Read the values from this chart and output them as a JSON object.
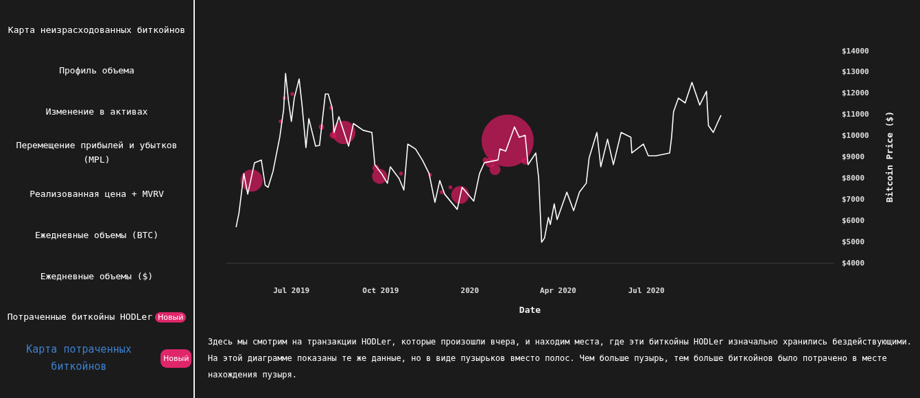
{
  "chart_data": {
    "type": "line",
    "xlabel": "Date",
    "ylabel": "Bitcoin Price ($)",
    "xticks": [
      {
        "value": "2019-07-01",
        "label": "Jul 2019"
      },
      {
        "value": "2019-10-01",
        "label": "Oct 2019"
      },
      {
        "value": "2020-01-01",
        "label": "2020"
      },
      {
        "value": "2020-04-01",
        "label": "Apr 2020"
      },
      {
        "value": "2020-07-01",
        "label": "Jul 2020"
      }
    ],
    "xlim": [
      "2019-04-25",
      "2021-01-10"
    ],
    "ylim": [
      4000,
      14000
    ],
    "yticks": [
      {
        "value": 4000,
        "label": "$4000"
      },
      {
        "value": 5000,
        "label": "$5000"
      },
      {
        "value": 6000,
        "label": "$6000"
      },
      {
        "value": 7000,
        "label": "$7000"
      },
      {
        "value": 8000,
        "label": "$8000"
      },
      {
        "value": 9000,
        "label": "$9000"
      },
      {
        "value": 10000,
        "label": "$10000"
      },
      {
        "value": 11000,
        "label": "$11000"
      },
      {
        "value": 12000,
        "label": "$12000"
      },
      {
        "value": 13000,
        "label": "$13000"
      },
      {
        "value": 14000,
        "label": "$14000"
      }
    ],
    "grid": false,
    "line_style": "solid",
    "series": [
      {
        "color": "#ffffff",
        "x": [
          "2019-05-05",
          "2019-05-08",
          "2019-05-13",
          "2019-05-17",
          "2019-05-24",
          "2019-05-31",
          "2019-06-04",
          "2019-06-07",
          "2019-06-12",
          "2019-06-19",
          "2019-06-23",
          "2019-06-25",
          "2019-06-28",
          "2019-07-01",
          "2019-07-04",
          "2019-07-09",
          "2019-07-12",
          "2019-07-16",
          "2019-07-19",
          "2019-07-26",
          "2019-07-30",
          "2019-08-05",
          "2019-08-08",
          "2019-08-12",
          "2019-08-14",
          "2019-08-19",
          "2019-08-29",
          "2019-09-03",
          "2019-09-13",
          "2019-09-22",
          "2019-09-25",
          "2019-10-02",
          "2019-10-08",
          "2019-10-11",
          "2019-10-20",
          "2019-10-25",
          "2019-10-29",
          "2019-11-06",
          "2019-11-13",
          "2019-11-20",
          "2019-11-26",
          "2019-12-01",
          "2019-12-06",
          "2019-12-19",
          "2019-12-24",
          "2020-01-05",
          "2020-01-11",
          "2020-01-16",
          "2020-01-30",
          "2020-02-01",
          "2020-02-07",
          "2020-02-16",
          "2020-02-21",
          "2020-02-27",
          "2020-03-01",
          "2020-03-09",
          "2020-03-12",
          "2020-03-15",
          "2020-03-18",
          "2020-03-22",
          "2020-03-24",
          "2020-03-28",
          "2020-03-31",
          "2020-04-10",
          "2020-04-17",
          "2020-04-23",
          "2020-04-30",
          "2020-05-03",
          "2020-05-11",
          "2020-05-15",
          "2020-05-22",
          "2020-05-28",
          "2020-06-05",
          "2020-06-15",
          "2020-06-16",
          "2020-06-28",
          "2020-07-03",
          "2020-07-11",
          "2020-07-25",
          "2020-07-27",
          "2020-07-29",
          "2020-08-03",
          "2020-08-10",
          "2020-08-17",
          "2020-08-25",
          "2020-09-01",
          "2020-09-03",
          "2020-09-08",
          "2020-09-12",
          "2020-09-16"
        ],
        "values": [
          5680,
          6360,
          8210,
          7240,
          8720,
          8850,
          7660,
          7560,
          8300,
          9920,
          11220,
          12930,
          11640,
          10670,
          11770,
          12670,
          11440,
          9430,
          10800,
          9500,
          9540,
          11960,
          11960,
          11310,
          10150,
          10890,
          9500,
          10570,
          10250,
          10150,
          8630,
          8210,
          7750,
          8530,
          7980,
          7430,
          9600,
          9370,
          8850,
          8210,
          6850,
          7880,
          7240,
          6520,
          7560,
          6910,
          8210,
          8720,
          8850,
          9370,
          9270,
          10410,
          9920,
          10020,
          8630,
          9180,
          7980,
          4970,
          5170,
          6140,
          5810,
          6780,
          6040,
          7330,
          6460,
          7330,
          7750,
          8950,
          10150,
          8530,
          9830,
          8630,
          10150,
          9920,
          9180,
          9600,
          9050,
          9050,
          9180,
          9920,
          11120,
          11770,
          11540,
          12510,
          11440,
          12090,
          10470,
          10150,
          10570,
          10960
        ]
      },
      {
        "type": "bubble",
        "color": "#d81b60",
        "x": [
          "2019-05-21",
          "2019-08-24",
          "2019-08-13",
          "2019-09-30",
          "2019-09-26",
          "2019-12-22",
          "2020-02-09",
          "2020-01-27",
          "2020-01-22",
          "2020-02-27",
          "2019-08-01",
          "2019-06-24",
          "2019-07-02",
          "2019-06-20",
          "2019-11-21",
          "2019-12-03",
          "2019-10-22",
          "2019-08-11",
          "2019-12-12",
          "2020-01-17"
        ],
        "values": [
          7880,
          10150,
          10020,
          8080,
          8470,
          7200,
          9760,
          8400,
          8720,
          8790,
          10410,
          11770,
          11960,
          10670,
          8150,
          7330,
          8210,
          11310,
          7560,
          8850
        ],
        "sizes": [
          0.18,
          0.2,
          0.017,
          0.084,
          0.017,
          0.117,
          1,
          0.044,
          0.034,
          0.017,
          0.011,
          0.006,
          0.006,
          0.006,
          0.006,
          0.006,
          0.006,
          0.006,
          0.006,
          0.011
        ]
      }
    ],
    "annotations": [
      "Карта неизрасходованных биткойнов",
      "Профиль объема",
      "Изменение в активах",
      "Перемещение прибылей и убытков (MPL)",
      "Реализованная цена + MVRV",
      "Ежедневные объемы (BTC)",
      "Ежедневные объемы ($)",
      "Потраченные биткойны HODLer",
      "Карта потраченных биткойнов",
      "Новый",
      "Новый",
      "Здесь мы смотрим на транзакции HODLer, которые произошли вчера, и находим места, где эти биткойны HODLer изначально хранились бездействующими. На этой диаграмме показаны те же данные, но в виде пузырьков вместо полос. Чем больше пузырь, тем больше биткойнов было потрачено в месте нахождения пузыря."
    ]
  }
}
